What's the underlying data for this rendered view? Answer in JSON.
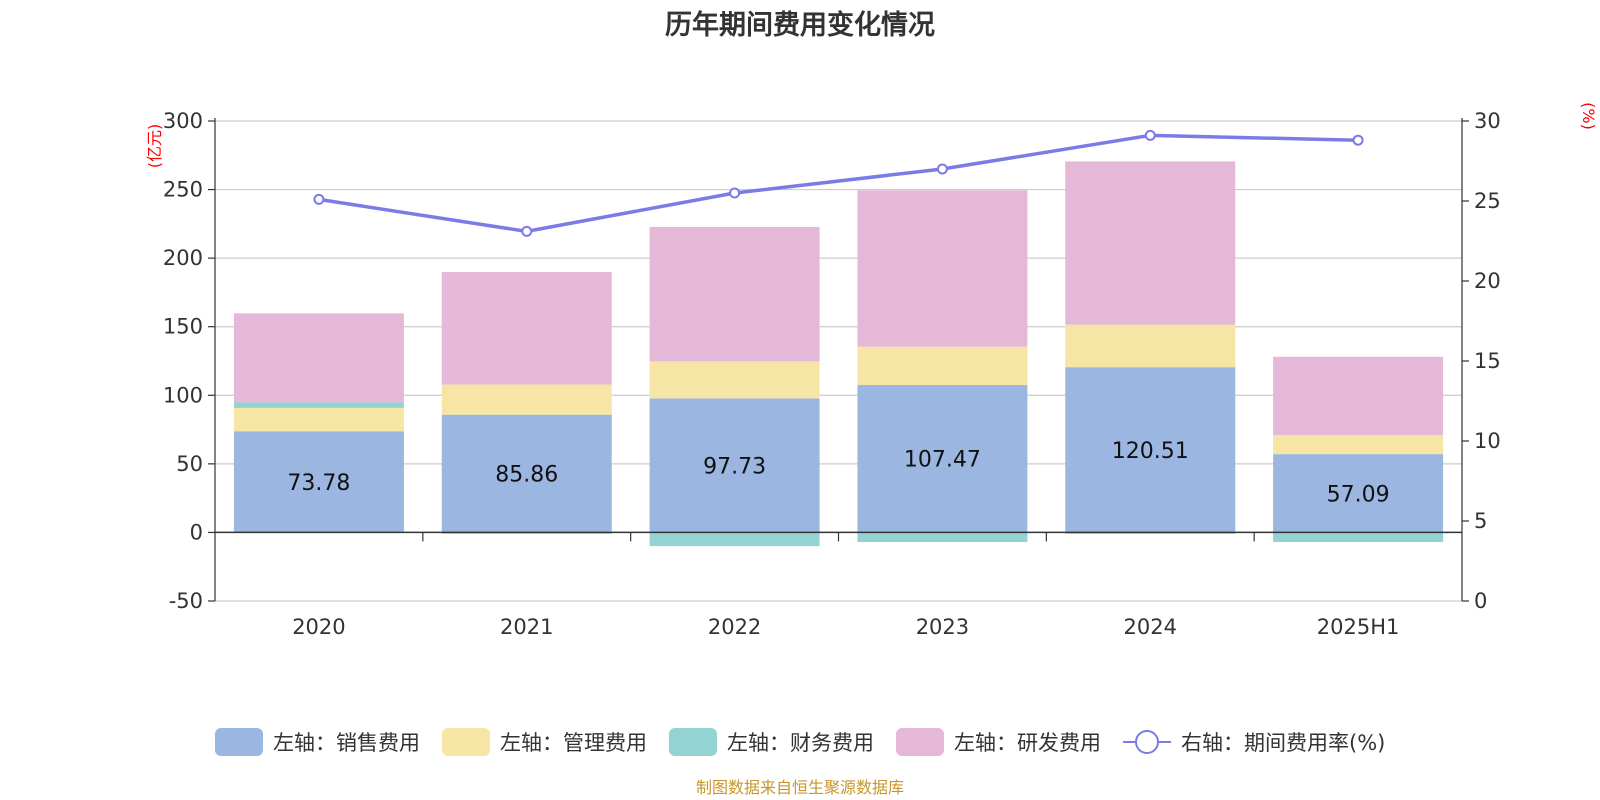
{
  "chart_data": {
    "type": "bar",
    "title": "历年期间费用变化情况",
    "categories": [
      "2020",
      "2021",
      "2022",
      "2023",
      "2024",
      "2025H1"
    ],
    "stacked": true,
    "y_left": {
      "unit": "(亿元)",
      "ylim": [
        -50,
        300
      ],
      "ticks": [
        "300",
        "250",
        "200",
        "150",
        "100",
        "50",
        "0",
        "-50"
      ]
    },
    "y_right": {
      "unit": "(%)",
      "ylim": [
        0,
        30
      ],
      "ticks": [
        "30",
        "25",
        "20",
        "15",
        "10",
        "5",
        "0"
      ]
    },
    "series": [
      {
        "name": "左轴：销售费用",
        "type": "bar",
        "axis": "left",
        "color": "#9bb6e0",
        "values": [
          73.78,
          85.86,
          97.73,
          107.47,
          120.51,
          57.09
        ],
        "labels": [
          "73.78",
          "85.86",
          "97.73",
          "107.47",
          "120.51",
          "57.09"
        ]
      },
      {
        "name": "左轴：管理费用",
        "type": "bar",
        "axis": "left",
        "color": "#f7e5a5",
        "values": [
          17,
          22,
          27,
          28,
          31,
          14
        ]
      },
      {
        "name": "左轴：财务费用",
        "type": "bar",
        "axis": "left",
        "color": "#94d3d3",
        "values": [
          4,
          -1,
          -10,
          -7,
          -1,
          -7
        ]
      },
      {
        "name": "左轴：研发费用",
        "type": "bar",
        "axis": "left",
        "color": "#e6b8d8",
        "values": [
          65,
          82,
          98,
          114,
          119,
          57
        ]
      },
      {
        "name": "右轴：期间费用率(%)",
        "type": "line",
        "axis": "right",
        "color": "#7b7be8",
        "values": [
          25.1,
          23.1,
          25.5,
          27.0,
          29.1,
          28.8
        ]
      }
    ],
    "grid": true,
    "legend_position": "bottom"
  },
  "source_note": "制图数据来自恒生聚源数据库"
}
